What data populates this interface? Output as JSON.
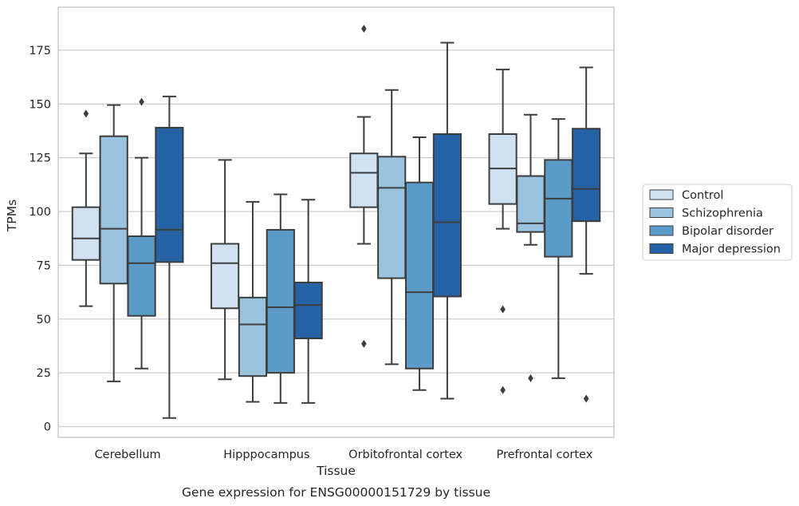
{
  "chart_data": {
    "type": "box",
    "title": "",
    "caption": "Gene expression for ENSG00000151729 by tissue",
    "xlabel": "Tissue",
    "ylabel": "TPMs",
    "ylim": [
      -5,
      195
    ],
    "yticks": [
      0,
      25,
      50,
      75,
      100,
      125,
      150,
      175
    ],
    "grid": true,
    "legend_placement": "right",
    "categories": [
      "Cerebellum",
      "Hipppocampus",
      "Orbitofrontal cortex",
      "Prefrontal cortex"
    ],
    "series": [
      {
        "name": "Control",
        "color": "#d0e1f2",
        "boxes": [
          {
            "whisker_low": 56,
            "q1": 77.5,
            "median": 87.5,
            "q3": 102,
            "whisker_high": 127,
            "outliers": [
              145.5
            ]
          },
          {
            "whisker_low": 22,
            "q1": 55,
            "median": 76,
            "q3": 85,
            "whisker_high": 124,
            "outliers": []
          },
          {
            "whisker_low": 85,
            "q1": 102,
            "median": 118,
            "q3": 127,
            "whisker_high": 144,
            "outliers": [
              185,
              38.5
            ]
          },
          {
            "whisker_low": 92,
            "q1": 103.5,
            "median": 120,
            "q3": 136,
            "whisker_high": 166,
            "outliers": [
              54.5,
              17
            ]
          }
        ]
      },
      {
        "name": "Schizophrenia",
        "color": "#9ac3df",
        "boxes": [
          {
            "whisker_low": 21,
            "q1": 66.5,
            "median": 92,
            "q3": 135,
            "whisker_high": 149.5,
            "outliers": []
          },
          {
            "whisker_low": 11.5,
            "q1": 23.5,
            "median": 47.5,
            "q3": 60,
            "whisker_high": 104.5,
            "outliers": []
          },
          {
            "whisker_low": 29,
            "q1": 69,
            "median": 111,
            "q3": 125.5,
            "whisker_high": 156.5,
            "outliers": []
          },
          {
            "whisker_low": 84.5,
            "q1": 90.5,
            "median": 94.5,
            "q3": 116.5,
            "whisker_high": 145,
            "outliers": [
              22.5
            ]
          }
        ]
      },
      {
        "name": "Bipolar disorder",
        "color": "#5b9bc8",
        "boxes": [
          {
            "whisker_low": 27,
            "q1": 51.5,
            "median": 76,
            "q3": 88.5,
            "whisker_high": 125,
            "outliers": [
              151
            ]
          },
          {
            "whisker_low": 11,
            "q1": 25,
            "median": 55.5,
            "q3": 91.5,
            "whisker_high": 108,
            "outliers": []
          },
          {
            "whisker_low": 17,
            "q1": 27,
            "median": 62.5,
            "q3": 113.5,
            "whisker_high": 134.5,
            "outliers": []
          },
          {
            "whisker_low": 22.5,
            "q1": 79,
            "median": 106,
            "q3": 124,
            "whisker_high": 143,
            "outliers": []
          }
        ]
      },
      {
        "name": "Major depression",
        "color": "#2563a6",
        "boxes": [
          {
            "whisker_low": 4,
            "q1": 76.5,
            "median": 91.5,
            "q3": 139,
            "whisker_high": 153.5,
            "outliers": []
          },
          {
            "whisker_low": 11,
            "q1": 41,
            "median": 56.5,
            "q3": 67,
            "whisker_high": 105.5,
            "outliers": []
          },
          {
            "whisker_low": 13,
            "q1": 60.5,
            "median": 95,
            "q3": 136,
            "whisker_high": 178.5,
            "outliers": []
          },
          {
            "whisker_low": 71,
            "q1": 95.5,
            "median": 110.5,
            "q3": 138.5,
            "whisker_high": 167,
            "outliers": [
              13
            ]
          }
        ]
      }
    ]
  }
}
